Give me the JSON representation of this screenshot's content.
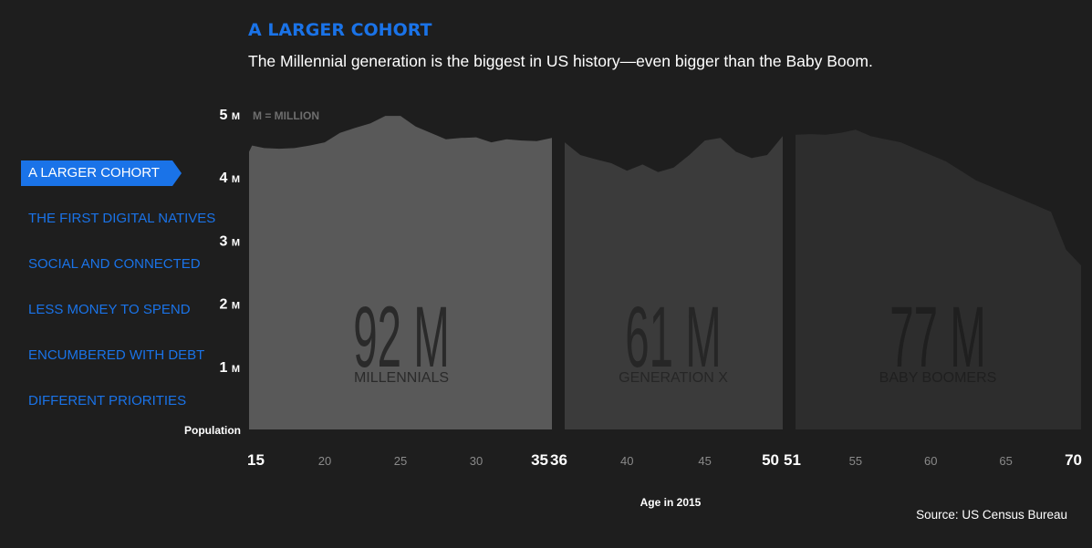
{
  "title": "A LARGER COHORT",
  "subtitle": "The Millennial generation is the biggest in US history—even bigger than the Baby Boom.",
  "nav": {
    "items": [
      {
        "label": "A LARGER COHORT",
        "active": true
      },
      {
        "label": "THE FIRST DIGITAL NATIVES",
        "active": false
      },
      {
        "label": "SOCIAL AND CONNECTED",
        "active": false
      },
      {
        "label": "LESS MONEY TO SPEND",
        "active": false
      },
      {
        "label": "ENCUMBERED WITH DEBT",
        "active": false
      },
      {
        "label": "DIFFERENT PRIORITIES",
        "active": false
      }
    ]
  },
  "source": "Source: US Census Bureau",
  "chart_data": {
    "type": "area",
    "ylabel": "Population",
    "xlabel": "Age in 2015",
    "unit_note": "M = MILLION",
    "ylim": [
      0,
      5
    ],
    "y_ticks": [
      {
        "value": 1,
        "label": "1"
      },
      {
        "value": 2,
        "label": "2"
      },
      {
        "value": 3,
        "label": "3"
      },
      {
        "value": 4,
        "label": "4"
      },
      {
        "value": 5,
        "label": "5"
      }
    ],
    "y_tick_suffix": "M",
    "x_ticks": [
      {
        "value": 15,
        "label": "15",
        "major": true
      },
      {
        "value": 20,
        "label": "20",
        "major": false
      },
      {
        "value": 25,
        "label": "25",
        "major": false
      },
      {
        "value": 30,
        "label": "30",
        "major": false
      },
      {
        "value": 35,
        "label": "35",
        "major": true
      },
      {
        "value": 36,
        "label": "36",
        "major": true
      },
      {
        "value": 40,
        "label": "40",
        "major": false
      },
      {
        "value": 45,
        "label": "45",
        "major": false
      },
      {
        "value": 50,
        "label": "50",
        "major": true
      },
      {
        "value": 51,
        "label": "51",
        "major": true
      },
      {
        "value": 55,
        "label": "55",
        "major": false
      },
      {
        "value": 60,
        "label": "60",
        "major": false
      },
      {
        "value": 65,
        "label": "65",
        "major": false
      },
      {
        "value": 70,
        "label": "70",
        "major": true
      }
    ],
    "colors": {
      "millennials": "#595959",
      "genx": "#3b3b3b",
      "boomers": "#2d2d2d",
      "background": "#1e1e1e",
      "accent": "#1a73e8"
    },
    "series": [
      {
        "name": "MILLENNIALS",
        "total": "92 M",
        "ages": [
          15,
          35
        ],
        "x": [
          15,
          15.2,
          16,
          17,
          18,
          19,
          20,
          21,
          22,
          23,
          24,
          25,
          26,
          27,
          28,
          29,
          30,
          31,
          32,
          33,
          34,
          35
        ],
        "y": [
          4.4,
          4.5,
          4.46,
          4.45,
          4.46,
          4.5,
          4.55,
          4.7,
          4.78,
          4.85,
          4.97,
          4.97,
          4.8,
          4.7,
          4.6,
          4.62,
          4.63,
          4.55,
          4.6,
          4.58,
          4.57,
          4.62
        ]
      },
      {
        "name": "GENERATION X",
        "total": "61 M",
        "ages": [
          36,
          50
        ],
        "x": [
          36,
          37,
          38,
          39,
          40,
          41,
          42,
          43,
          44,
          45,
          46,
          47,
          48,
          49,
          50
        ],
        "y": [
          4.55,
          4.35,
          4.28,
          4.22,
          4.1,
          4.2,
          4.08,
          4.15,
          4.35,
          4.58,
          4.62,
          4.4,
          4.3,
          4.35,
          4.65
        ]
      },
      {
        "name": "BABY BOOMERS",
        "total": "77 M",
        "ages": [
          51,
          70
        ],
        "x": [
          51,
          52,
          53,
          54,
          55,
          56,
          57,
          58,
          59,
          60,
          61,
          62,
          63,
          64,
          65,
          66,
          67,
          68,
          69,
          70
        ],
        "y": [
          4.67,
          4.68,
          4.67,
          4.7,
          4.75,
          4.65,
          4.6,
          4.55,
          4.45,
          4.35,
          4.25,
          4.1,
          3.95,
          3.85,
          3.75,
          3.65,
          3.55,
          3.45,
          2.85,
          2.6
        ]
      }
    ]
  }
}
